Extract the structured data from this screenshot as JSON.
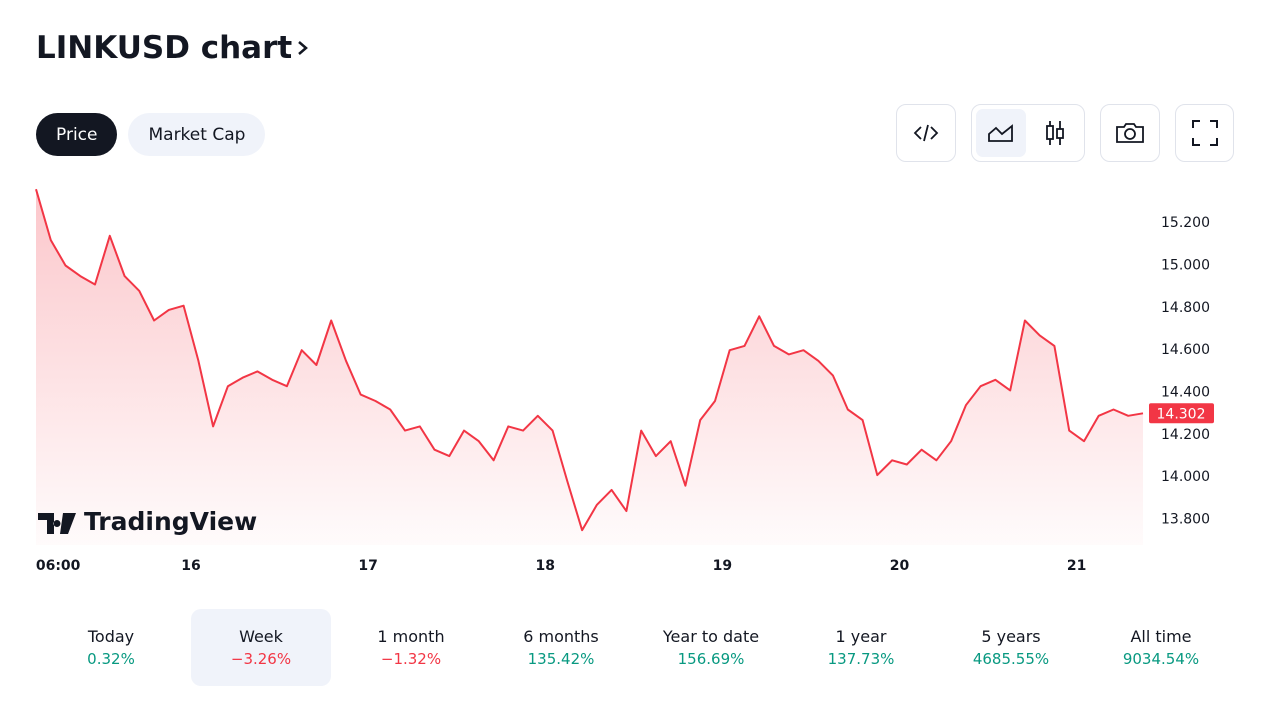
{
  "header": {
    "title": "LINKUSD chart"
  },
  "tabs": {
    "items": [
      "Price",
      "Market Cap"
    ],
    "active": 0
  },
  "chart_data": {
    "type": "line",
    "color": "#f23645",
    "x": [
      0,
      2,
      4,
      6,
      8,
      10,
      12,
      14,
      16,
      18,
      20,
      22,
      24,
      26,
      28,
      30,
      32,
      34,
      36,
      38,
      40,
      42,
      44,
      46,
      48,
      50,
      52,
      54,
      56,
      58,
      60,
      62,
      64,
      66,
      68,
      70,
      72,
      74,
      76,
      78,
      80,
      82,
      84,
      86,
      88,
      90,
      92,
      94,
      96,
      98,
      100,
      102,
      104,
      106,
      108,
      110,
      112,
      114,
      116,
      118,
      120,
      122,
      124,
      126,
      128,
      130,
      132,
      134,
      136,
      138,
      140,
      142,
      144,
      146,
      148,
      150
    ],
    "values": [
      15.36,
      15.12,
      15.0,
      14.95,
      14.91,
      15.14,
      14.95,
      14.88,
      14.74,
      14.79,
      14.81,
      14.55,
      14.24,
      14.43,
      14.47,
      14.5,
      14.46,
      14.43,
      14.6,
      14.53,
      14.74,
      14.55,
      14.39,
      14.36,
      14.32,
      14.22,
      14.24,
      14.13,
      14.1,
      14.22,
      14.17,
      14.08,
      14.24,
      14.22,
      14.29,
      14.22,
      13.98,
      13.75,
      13.87,
      13.94,
      13.84,
      14.22,
      14.1,
      14.17,
      13.96,
      14.27,
      14.36,
      14.6,
      14.62,
      14.76,
      14.62,
      14.58,
      14.6,
      14.55,
      14.48,
      14.32,
      14.27,
      14.01,
      14.08,
      14.06,
      14.13,
      14.08,
      14.17,
      14.34,
      14.43,
      14.46,
      14.41,
      14.74,
      14.67,
      14.62,
      14.22,
      14.17,
      14.29,
      14.32,
      14.29,
      14.302
    ],
    "xlim": [
      0,
      150
    ],
    "xticks": [
      {
        "value": 3,
        "label": "06:00"
      },
      {
        "value": 21,
        "label": "16"
      },
      {
        "value": 45,
        "label": "17"
      },
      {
        "value": 69,
        "label": "18"
      },
      {
        "value": 93,
        "label": "19"
      },
      {
        "value": 117,
        "label": "20"
      },
      {
        "value": 141,
        "label": "21"
      }
    ],
    "ylim": [
      13.68,
      15.38
    ],
    "yticks": [
      {
        "value": 13.8,
        "label": "13.800"
      },
      {
        "value": 14.0,
        "label": "14.000"
      },
      {
        "value": 14.2,
        "label": "14.200"
      },
      {
        "value": 14.4,
        "label": "14.400"
      },
      {
        "value": 14.6,
        "label": "14.600"
      },
      {
        "value": 14.8,
        "label": "14.800"
      },
      {
        "value": 15.0,
        "label": "15.000"
      },
      {
        "value": 15.2,
        "label": "15.200"
      }
    ],
    "current_price": 14.302,
    "watermark": "TradingView"
  },
  "periods": [
    {
      "label": "Today",
      "change": "0.32%"
    },
    {
      "label": "Week",
      "change": "−3.26%",
      "selected": true
    },
    {
      "label": "1 month",
      "change": "−1.32%"
    },
    {
      "label": "6 months",
      "change": "135.42%"
    },
    {
      "label": "Year to date",
      "change": "156.69%"
    },
    {
      "label": "1 year",
      "change": "137.73%"
    },
    {
      "label": "5 years",
      "change": "4685.55%"
    },
    {
      "label": "All time",
      "change": "9034.54%"
    }
  ]
}
